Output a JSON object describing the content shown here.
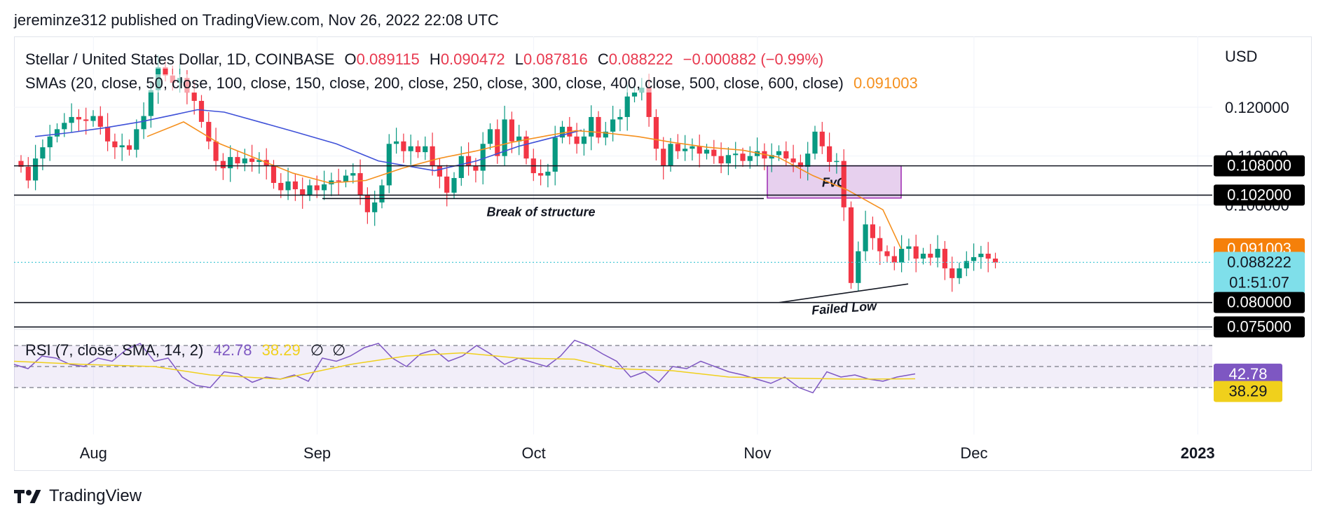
{
  "header": {
    "published": "jereminze312 published on TradingView.com, Nov 26, 2022 22:08 UTC"
  },
  "legend": {
    "symbol": "Stellar / United States Dollar, 1D, COINBASE",
    "open_label": "O",
    "open": "0.089115",
    "high_label": "H",
    "high": "0.090472",
    "low_label": "L",
    "low": "0.087816",
    "close_label": "C",
    "close": "0.088222",
    "change": "−0.000882 (−0.99%)",
    "smas": "SMAs (20, close, 50, close, 100, close, 150, close, 200, close, 250, close, 300, close, 400, close, 500, close, 600, close)",
    "sma_value": "0.091003"
  },
  "rsi_legend": {
    "label": "RSI (7, close, SMA, 14, 2)",
    "rsi": "42.78",
    "rsi_ma": "38.29",
    "icon1": "∅",
    "icon2": "∅"
  },
  "axis": {
    "currency": "USD"
  },
  "footer": {
    "brand": "TradingView"
  },
  "colors": {
    "up": "#089981",
    "down": "#f23645",
    "sma_short": "#f5901e",
    "sma_long": "#3f51d8",
    "rsi": "#7e57c2",
    "rsi_ma": "#f0d01c",
    "fvg_fill": "#e7d0ee",
    "fvg_border": "#9c27b0",
    "price_badge": "#7fdfea",
    "sma_badge": "#f5800a"
  },
  "chart_data": {
    "type": "candlestick",
    "symbol": "Stellar / United States Dollar, 1D, COINBASE",
    "start_date": "2022-07-21",
    "y_range": [
      0.0745,
      0.1345
    ],
    "y_ticks": [
      0.12,
      0.11,
      0.1
    ],
    "x_ticks": [
      {
        "label": "Aug",
        "date": "2022-08-01"
      },
      {
        "label": "Sep",
        "date": "2022-09-01"
      },
      {
        "label": "Oct",
        "date": "2022-10-01"
      },
      {
        "label": "Nov",
        "date": "2022-11-01"
      },
      {
        "label": "Dec",
        "date": "2022-12-01"
      },
      {
        "label": "2023",
        "date": "2023-01-01",
        "bold": true
      }
    ],
    "closes": [
      0.1078,
      0.105,
      0.1095,
      0.1118,
      0.114,
      0.1155,
      0.1168,
      0.118,
      0.1175,
      0.1172,
      0.1182,
      0.116,
      0.113,
      0.1118,
      0.1122,
      0.1113,
      0.1155,
      0.1182,
      0.1235,
      0.1282,
      0.1265,
      0.125,
      0.126,
      0.123,
      0.1213,
      0.117,
      0.113,
      0.109,
      0.1075,
      0.1098,
      0.1085,
      0.1095,
      0.1088,
      0.1092,
      0.108,
      0.1045,
      0.103,
      0.1048,
      0.1032,
      0.102,
      0.104,
      0.103,
      0.1042,
      0.105,
      0.1048,
      0.106,
      0.1065,
      0.102,
      0.0985,
      0.1005,
      0.104,
      0.1125,
      0.113,
      0.111,
      0.112,
      0.1108,
      0.112,
      0.108,
      0.1058,
      0.1025,
      0.1055,
      0.11,
      0.108,
      0.107,
      0.1125,
      0.1155,
      0.11,
      0.1175,
      0.113,
      0.114,
      0.1095,
      0.1065,
      0.106,
      0.1068,
      0.1138,
      0.116,
      0.114,
      0.1125,
      0.114,
      0.118,
      0.1138,
      0.115,
      0.1175,
      0.118,
      0.1222,
      0.123,
      0.124,
      0.118,
      0.1115,
      0.108,
      0.1125,
      0.111,
      0.1115,
      0.112,
      0.1105,
      0.1113,
      0.11,
      0.1085,
      0.1102,
      0.1105,
      0.109,
      0.11,
      0.111,
      0.1095,
      0.1102,
      0.111,
      0.1095,
      0.1087,
      0.1078,
      0.1105,
      0.115,
      0.112,
      0.1088,
      0.109,
      0.0995,
      0.084,
      0.0905,
      0.096,
      0.0932,
      0.0905,
      0.0895,
      0.0882,
      0.091,
      0.0915,
      0.089,
      0.09,
      0.0892,
      0.091,
      0.087,
      0.085,
      0.087,
      0.0885,
      0.0893,
      0.09,
      0.089,
      0.0882
    ],
    "sma_short": [
      [
        0.108,
        0.11387
      ],
      [
        0.10473,
        0.11488
      ],
      [
        0.102,
        0.11504
      ],
      [
        0.091,
        0.10567
      ],
      [
        0.087,
        0.098
      ]
    ],
    "sma_short_points": [
      [
        210,
        0.114
      ],
      [
        262,
        0.117
      ],
      [
        314,
        0.1125
      ],
      [
        366,
        0.1095
      ],
      [
        418,
        0.1065
      ],
      [
        470,
        0.1045
      ],
      [
        522,
        0.105
      ],
      [
        574,
        0.1075
      ],
      [
        626,
        0.1095
      ],
      [
        678,
        0.111
      ],
      [
        730,
        0.1128
      ],
      [
        782,
        0.1142
      ],
      [
        822,
        0.1152
      ],
      [
        860,
        0.1148
      ],
      [
        910,
        0.114
      ],
      [
        960,
        0.1128
      ],
      [
        1010,
        0.1118
      ],
      [
        1060,
        0.1112
      ],
      [
        1110,
        0.1098
      ],
      [
        1160,
        0.106
      ],
      [
        1210,
        0.103
      ],
      [
        1260,
        0.099
      ],
      [
        1286,
        0.091
      ]
    ],
    "sma_long_points": [
      [
        30,
        0.114
      ],
      [
        80,
        0.1148
      ],
      [
        130,
        0.1158
      ],
      [
        180,
        0.117
      ],
      [
        230,
        0.1185
      ],
      [
        262,
        0.1195
      ],
      [
        300,
        0.119
      ],
      [
        400,
        0.115
      ],
      [
        460,
        0.1125
      ],
      [
        520,
        0.109
      ],
      [
        600,
        0.107
      ],
      [
        660,
        0.109
      ],
      [
        720,
        0.112
      ],
      [
        780,
        0.1142
      ],
      [
        810,
        0.1153
      ]
    ],
    "support_lines": [
      0.108,
      0.102,
      0.08,
      0.075
    ],
    "fvg": {
      "label": "FvG",
      "top": 0.108,
      "bottom": 0.1014
    },
    "bos": {
      "label": "Break of structure",
      "level": 0.1013
    },
    "failed_low": {
      "label": "Failed Low",
      "from": 0.08,
      "to": 0.0838
    },
    "price_badges": [
      {
        "value": "0.108000",
        "price": 0.108,
        "style": "dark"
      },
      {
        "value": "0.102000",
        "price": 0.102,
        "style": "dark"
      },
      {
        "value": "0.091003",
        "price": 0.091003,
        "style": "sma"
      },
      {
        "value": "0.088222",
        "price": 0.088222,
        "style": "last",
        "countdown": "01:51:07"
      },
      {
        "value": "0.080000",
        "price": 0.08,
        "style": "dark"
      },
      {
        "value": "0.075000",
        "price": 0.075,
        "style": "dark"
      }
    ],
    "rsi": {
      "levels": [
        70,
        50,
        30
      ],
      "band": [
        30,
        70
      ],
      "rsi_points": [
        [
          0,
          52
        ],
        [
          20,
          48
        ],
        [
          40,
          60
        ],
        [
          60,
          58
        ],
        [
          80,
          52
        ],
        [
          100,
          50
        ],
        [
          120,
          58
        ],
        [
          140,
          55
        ],
        [
          160,
          66
        ],
        [
          180,
          72
        ],
        [
          200,
          55
        ],
        [
          220,
          58
        ],
        [
          240,
          40
        ],
        [
          260,
          32
        ],
        [
          280,
          30
        ],
        [
          300,
          45
        ],
        [
          320,
          43
        ],
        [
          340,
          35
        ],
        [
          360,
          40
        ],
        [
          380,
          38
        ],
        [
          400,
          42
        ],
        [
          420,
          36
        ],
        [
          440,
          58
        ],
        [
          460,
          55
        ],
        [
          480,
          60
        ],
        [
          500,
          68
        ],
        [
          520,
          72
        ],
        [
          540,
          58
        ],
        [
          560,
          50
        ],
        [
          580,
          62
        ],
        [
          600,
          66
        ],
        [
          620,
          55
        ],
        [
          640,
          60
        ],
        [
          660,
          70
        ],
        [
          680,
          62
        ],
        [
          700,
          52
        ],
        [
          720,
          58
        ],
        [
          740,
          54
        ],
        [
          760,
          50
        ],
        [
          780,
          60
        ],
        [
          800,
          75
        ],
        [
          820,
          70
        ],
        [
          840,
          62
        ],
        [
          860,
          55
        ],
        [
          880,
          40
        ],
        [
          900,
          45
        ],
        [
          920,
          35
        ],
        [
          940,
          50
        ],
        [
          960,
          48
        ],
        [
          980,
          55
        ],
        [
          1000,
          50
        ],
        [
          1020,
          45
        ],
        [
          1040,
          42
        ],
        [
          1060,
          38
        ],
        [
          1080,
          34
        ],
        [
          1100,
          40
        ],
        [
          1120,
          30
        ],
        [
          1140,
          25
        ],
        [
          1160,
          45
        ],
        [
          1180,
          40
        ],
        [
          1200,
          42
        ],
        [
          1220,
          38
        ],
        [
          1240,
          36
        ],
        [
          1260,
          40
        ],
        [
          1286,
          43
        ]
      ],
      "rsi_ma_points": [
        [
          0,
          55
        ],
        [
          100,
          52
        ],
        [
          200,
          50
        ],
        [
          280,
          42
        ],
        [
          380,
          38
        ],
        [
          480,
          52
        ],
        [
          560,
          60
        ],
        [
          640,
          63
        ],
        [
          720,
          58
        ],
        [
          800,
          57
        ],
        [
          860,
          48
        ],
        [
          940,
          46
        ],
        [
          1020,
          40
        ],
        [
          1100,
          39
        ],
        [
          1200,
          38
        ],
        [
          1286,
          38.3
        ]
      ]
    }
  }
}
